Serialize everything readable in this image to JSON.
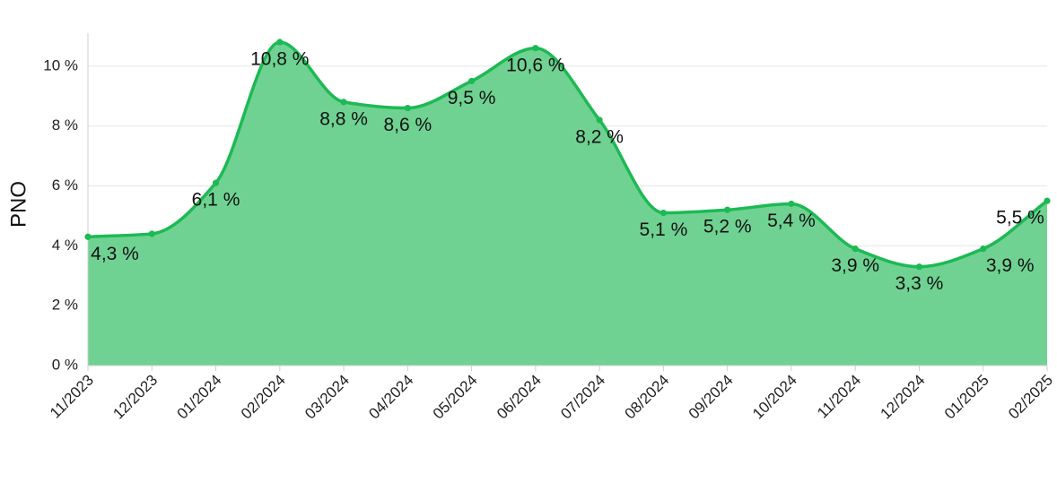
{
  "chart_data": {
    "type": "area",
    "ylabel": "PNO",
    "xlabel": "",
    "title": "",
    "categories": [
      "11/2023",
      "12/2023",
      "01/2024",
      "02/2024",
      "03/2024",
      "04/2024",
      "05/2024",
      "06/2024",
      "07/2024",
      "08/2024",
      "09/2024",
      "10/2024",
      "11/2024",
      "12/2024",
      "01/2025",
      "02/2025"
    ],
    "values": [
      4.3,
      4.4,
      6.1,
      10.8,
      8.8,
      8.6,
      9.5,
      10.6,
      8.2,
      5.1,
      5.2,
      5.4,
      3.9,
      3.3,
      3.9,
      5.5
    ],
    "data_labels": [
      "4,3 %",
      "",
      "6,1 %",
      "10,8 %",
      "8,8 %",
      "8,6 %",
      "9,5 %",
      "10,6 %",
      "8,2 %",
      "5,1 %",
      "5,2 %",
      "5,4 %",
      "3,9 %",
      "3,3 %",
      "3,9 %",
      "5,5 %"
    ],
    "yticks": [
      0,
      2,
      4,
      6,
      8,
      10
    ],
    "ytick_labels": [
      "0 %",
      "2 %",
      "4 %",
      "6 %",
      "8 %",
      "10 %"
    ],
    "ylim": [
      0,
      11.1
    ],
    "grid": true,
    "legend": "none",
    "colors": {
      "line": "#1db954",
      "fill": "#6fd292",
      "grid": "#e6e6e6"
    }
  }
}
